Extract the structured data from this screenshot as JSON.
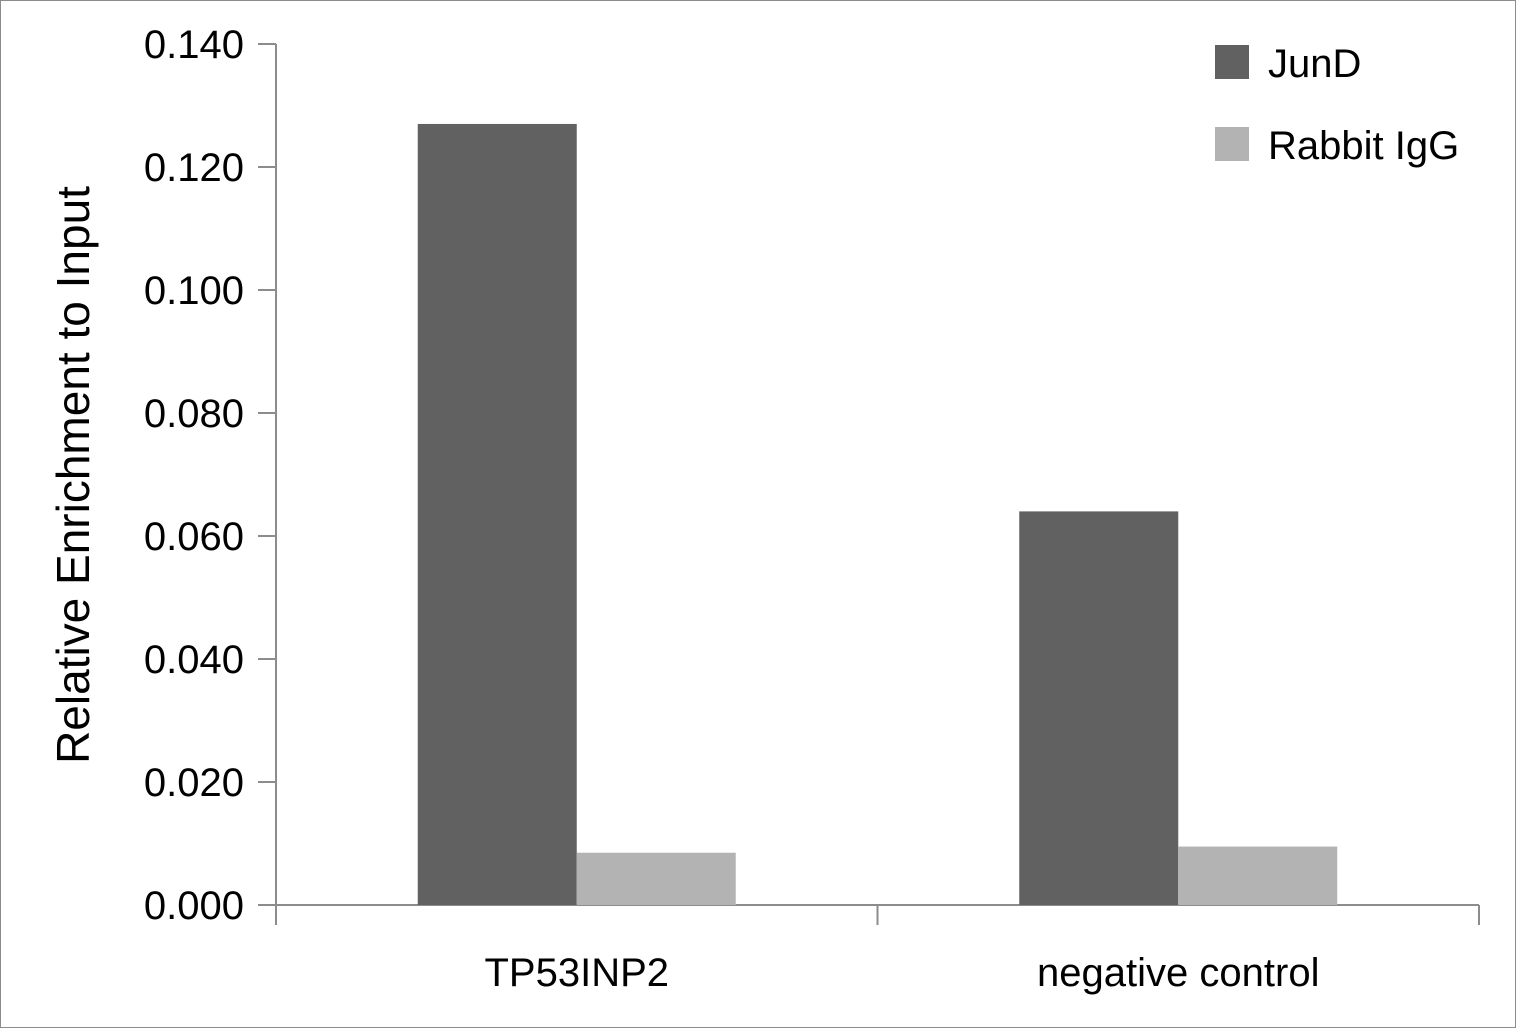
{
  "chart_data": {
    "type": "bar",
    "title": "",
    "xlabel": "",
    "ylabel": "Relative Enrichment to Input",
    "categories": [
      "TP53INP2",
      "negative control"
    ],
    "series": [
      {
        "name": "JunD",
        "values": [
          0.127,
          0.064
        ],
        "color": "#616161"
      },
      {
        "name": "Rabbit IgG",
        "values": [
          0.0085,
          0.0095
        ],
        "color": "#b3b3b3"
      }
    ],
    "ylim": [
      0,
      0.14
    ],
    "yticks": [
      "0.000",
      "0.020",
      "0.040",
      "0.060",
      "0.080",
      "0.100",
      "0.120",
      "0.140"
    ],
    "ytick_values": [
      0,
      0.02,
      0.04,
      0.06,
      0.08,
      0.1,
      0.12,
      0.14
    ],
    "grid": false,
    "legend_position": "top-right"
  }
}
